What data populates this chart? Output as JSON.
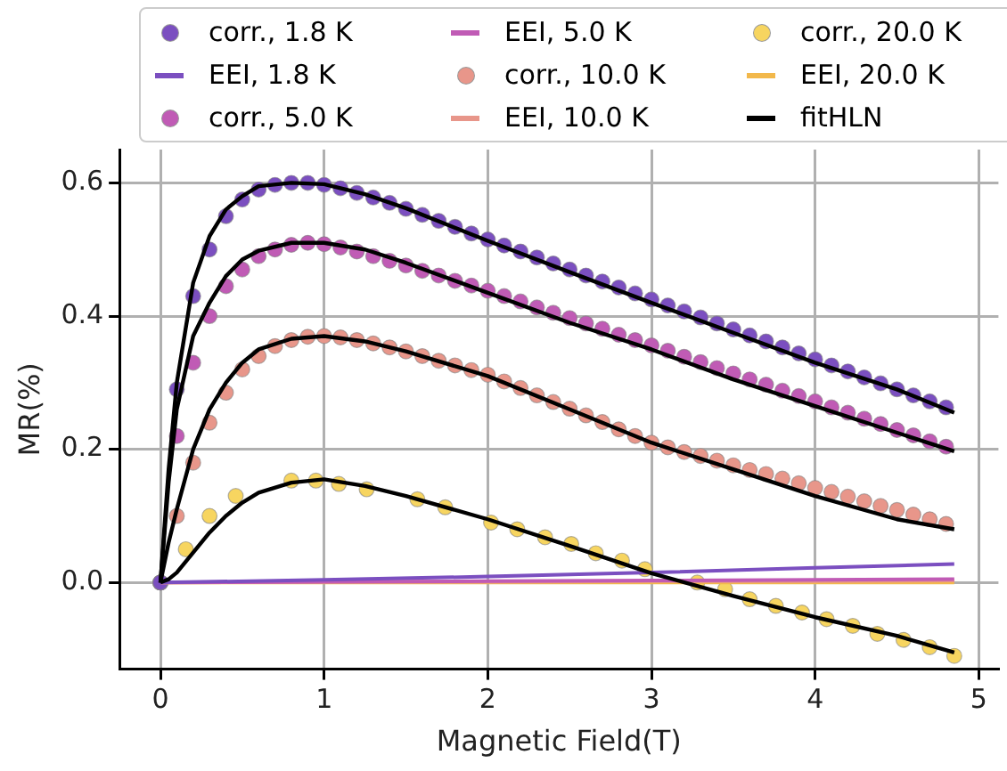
{
  "chart_data": {
    "type": "scatter",
    "xlabel": "Magnetic Field(T)",
    "ylabel": "MR(%)",
    "xlim": [
      -0.25,
      5.12
    ],
    "xticks": [
      0,
      1,
      2,
      3,
      4,
      5
    ],
    "ylim": [
      -0.13,
      0.65
    ],
    "yticks": [
      {
        "value": 0,
        "label": "0.0"
      },
      {
        "value": 0.2,
        "label": "0.2"
      },
      {
        "value": 0.4,
        "label": "0.4"
      },
      {
        "value": 0.6,
        "label": "0.6"
      }
    ],
    "grid": true,
    "legend": "top",
    "series": [
      {
        "name": "corr., 1.8 K",
        "marker": "circle",
        "color": "#7b4fc0",
        "x": [
          0,
          0.1,
          0.2,
          0.3,
          0.4,
          0.5,
          0.6,
          0.7,
          0.8,
          0.9,
          1.0,
          1.1,
          1.2,
          1.3,
          1.4,
          1.5,
          1.6,
          1.7,
          1.8,
          1.9,
          2.0,
          2.1,
          2.2,
          2.3,
          2.4,
          2.5,
          2.6,
          2.7,
          2.8,
          2.9,
          3.0,
          3.1,
          3.2,
          3.3,
          3.4,
          3.5,
          3.6,
          3.7,
          3.8,
          3.9,
          4.0,
          4.1,
          4.2,
          4.3,
          4.4,
          4.5,
          4.6,
          4.7,
          4.8
        ],
        "values": [
          0,
          0.29,
          0.43,
          0.5,
          0.55,
          0.575,
          0.59,
          0.597,
          0.6,
          0.6,
          0.597,
          0.592,
          0.585,
          0.578,
          0.57,
          0.561,
          0.552,
          0.543,
          0.534,
          0.524,
          0.515,
          0.506,
          0.497,
          0.488,
          0.479,
          0.47,
          0.461,
          0.452,
          0.443,
          0.434,
          0.425,
          0.416,
          0.407,
          0.398,
          0.389,
          0.38,
          0.371,
          0.362,
          0.353,
          0.344,
          0.335,
          0.326,
          0.317,
          0.308,
          0.299,
          0.29,
          0.281,
          0.272,
          0.263
        ]
      },
      {
        "name": "EEI, 1.8 K",
        "type": "line",
        "color": "#7b4fc0",
        "x": [
          0,
          1,
          2,
          3,
          4,
          4.85
        ],
        "values": [
          0,
          0.004,
          0.009,
          0.015,
          0.022,
          0.028
        ]
      },
      {
        "name": "corr., 5.0 K",
        "marker": "circle",
        "color": "#c05bb5",
        "x": [
          0,
          0.1,
          0.2,
          0.3,
          0.4,
          0.5,
          0.6,
          0.7,
          0.8,
          0.9,
          1.0,
          1.1,
          1.2,
          1.3,
          1.4,
          1.5,
          1.6,
          1.7,
          1.8,
          1.9,
          2.0,
          2.1,
          2.2,
          2.3,
          2.4,
          2.5,
          2.6,
          2.7,
          2.8,
          2.9,
          3.0,
          3.1,
          3.2,
          3.3,
          3.4,
          3.5,
          3.6,
          3.7,
          3.8,
          3.9,
          4.0,
          4.1,
          4.2,
          4.3,
          4.4,
          4.5,
          4.6,
          4.7,
          4.8
        ],
        "values": [
          0,
          0.22,
          0.33,
          0.4,
          0.445,
          0.47,
          0.49,
          0.5,
          0.507,
          0.51,
          0.508,
          0.503,
          0.497,
          0.49,
          0.483,
          0.476,
          0.468,
          0.461,
          0.453,
          0.446,
          0.438,
          0.43,
          0.422,
          0.413,
          0.405,
          0.397,
          0.389,
          0.381,
          0.372,
          0.364,
          0.356,
          0.348,
          0.339,
          0.331,
          0.322,
          0.314,
          0.305,
          0.297,
          0.288,
          0.28,
          0.272,
          0.263,
          0.255,
          0.246,
          0.238,
          0.229,
          0.221,
          0.212,
          0.204
        ]
      },
      {
        "name": "EEI, 5.0 K",
        "type": "line",
        "color": "#c05bb5",
        "x": [
          0,
          1,
          2,
          3,
          4,
          4.85
        ],
        "values": [
          0,
          0.001,
          0.002,
          0.003,
          0.004,
          0.005
        ]
      },
      {
        "name": "corr., 10.0 K",
        "marker": "circle",
        "color": "#e8968a",
        "x": [
          0,
          0.1,
          0.2,
          0.3,
          0.4,
          0.5,
          0.6,
          0.7,
          0.8,
          0.9,
          1.0,
          1.1,
          1.2,
          1.3,
          1.4,
          1.5,
          1.6,
          1.7,
          1.8,
          1.9,
          2.0,
          2.1,
          2.2,
          2.3,
          2.4,
          2.5,
          2.6,
          2.7,
          2.8,
          2.9,
          3.0,
          3.1,
          3.2,
          3.3,
          3.4,
          3.5,
          3.6,
          3.7,
          3.8,
          3.9,
          4.0,
          4.1,
          4.2,
          4.3,
          4.4,
          4.5,
          4.6,
          4.7,
          4.8
        ],
        "values": [
          0,
          0.1,
          0.18,
          0.24,
          0.285,
          0.32,
          0.34,
          0.355,
          0.364,
          0.369,
          0.37,
          0.368,
          0.364,
          0.359,
          0.353,
          0.347,
          0.34,
          0.333,
          0.326,
          0.319,
          0.312,
          0.302,
          0.292,
          0.281,
          0.271,
          0.261,
          0.251,
          0.241,
          0.23,
          0.22,
          0.21,
          0.203,
          0.196,
          0.19,
          0.183,
          0.176,
          0.169,
          0.163,
          0.156,
          0.149,
          0.142,
          0.136,
          0.129,
          0.122,
          0.115,
          0.109,
          0.102,
          0.095,
          0.088
        ]
      },
      {
        "name": "EEI, 10.0 K",
        "type": "line",
        "color": "#e8968a",
        "x": [
          0,
          1,
          2,
          3,
          4,
          4.85
        ],
        "values": [
          0,
          0.001,
          0.001,
          0.002,
          0.002,
          0.003
        ]
      },
      {
        "name": "corr., 20.0 K",
        "marker": "circle",
        "color": "#f7d560",
        "x": [
          0,
          0.155,
          0.3,
          0.46,
          0.8,
          0.95,
          1.09,
          1.26,
          1.57,
          1.74,
          2.02,
          2.18,
          2.35,
          2.51,
          2.66,
          2.82,
          2.96,
          3.28,
          3.45,
          3.6,
          3.76,
          3.92,
          4.07,
          4.23,
          4.38,
          4.54,
          4.7,
          4.85
        ],
        "values": [
          0,
          0.05,
          0.1,
          0.13,
          0.153,
          0.153,
          0.148,
          0.14,
          0.125,
          0.113,
          0.09,
          0.08,
          0.068,
          0.058,
          0.044,
          0.033,
          0.02,
          0.0,
          -0.01,
          -0.025,
          -0.035,
          -0.045,
          -0.055,
          -0.065,
          -0.077,
          -0.086,
          -0.097,
          -0.11
        ]
      },
      {
        "name": "EEI, 20.0 K",
        "type": "line",
        "color": "#f2b84b",
        "x": [
          0,
          1,
          2,
          3,
          4,
          4.85
        ],
        "values": [
          0,
          0,
          0,
          0,
          0,
          0
        ]
      },
      {
        "name": "fitHLN",
        "type": "line",
        "color": "#000000",
        "x": [
          0,
          0.05,
          0.1,
          0.2,
          0.3,
          0.4,
          0.5,
          0.6,
          0.8,
          1.0,
          1.25,
          1.5,
          2,
          2.5,
          3,
          3.5,
          4,
          4.5,
          4.85
        ],
        "values": [
          0,
          0.17,
          0.3,
          0.45,
          0.52,
          0.56,
          0.58,
          0.595,
          0.6,
          0.598,
          0.583,
          0.562,
          0.513,
          0.466,
          0.42,
          0.375,
          0.33,
          0.29,
          0.255
        ]
      },
      {
        "type": "line",
        "color": "#000000",
        "x": [
          0,
          0.05,
          0.1,
          0.2,
          0.3,
          0.4,
          0.5,
          0.6,
          0.8,
          1.0,
          1.25,
          1.5,
          2,
          2.5,
          3,
          3.5,
          4,
          4.5,
          4.85
        ],
        "values": [
          0,
          0.15,
          0.26,
          0.37,
          0.42,
          0.46,
          0.485,
          0.498,
          0.51,
          0.51,
          0.5,
          0.48,
          0.435,
          0.39,
          0.35,
          0.305,
          0.265,
          0.225,
          0.197
        ]
      },
      {
        "type": "line",
        "color": "#000000",
        "x": [
          0,
          0.05,
          0.1,
          0.2,
          0.3,
          0.4,
          0.5,
          0.6,
          0.8,
          1.0,
          1.25,
          1.5,
          2,
          2.5,
          3,
          3.5,
          4,
          4.5,
          4.85
        ],
        "values": [
          0,
          0.06,
          0.11,
          0.2,
          0.26,
          0.3,
          0.33,
          0.35,
          0.366,
          0.37,
          0.362,
          0.347,
          0.31,
          0.26,
          0.21,
          0.17,
          0.13,
          0.095,
          0.08
        ]
      },
      {
        "type": "line",
        "color": "#000000",
        "x": [
          0,
          0.05,
          0.1,
          0.2,
          0.3,
          0.4,
          0.5,
          0.6,
          0.8,
          1.0,
          1.25,
          1.5,
          2,
          2.5,
          3,
          3.5,
          4,
          4.5,
          4.85
        ],
        "values": [
          0,
          0.005,
          0.015,
          0.045,
          0.075,
          0.1,
          0.12,
          0.135,
          0.15,
          0.155,
          0.145,
          0.13,
          0.095,
          0.055,
          0.014,
          -0.02,
          -0.052,
          -0.08,
          -0.105
        ]
      }
    ]
  }
}
